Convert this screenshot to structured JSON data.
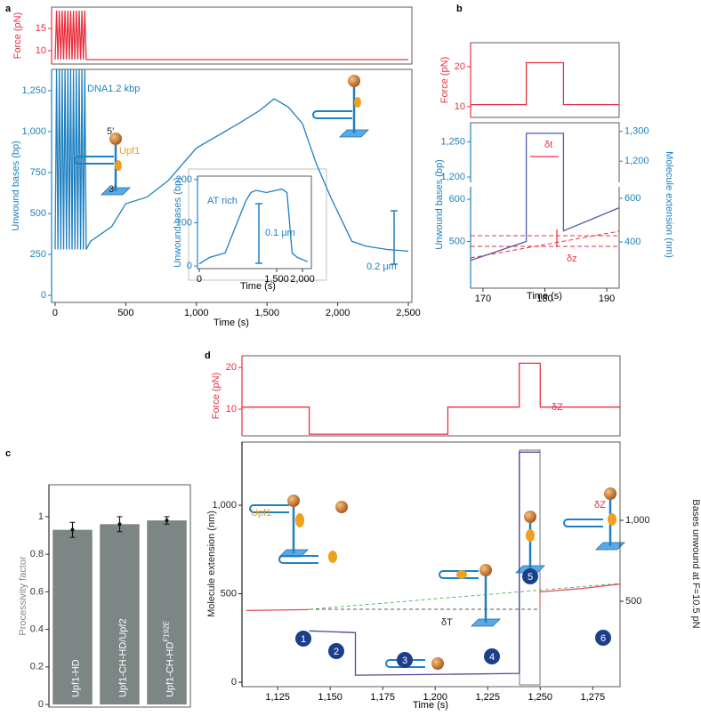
{
  "chart_data": [
    {
      "type": "line",
      "panel": "a",
      "ylabel": "Force (pN)",
      "axis_color": "#e8303f",
      "xlim": [
        -25,
        2525
      ],
      "ylim": [
        7,
        19.8
      ],
      "yticks": [
        10,
        15
      ],
      "x": [
        0,
        10,
        20,
        30,
        40,
        50,
        60,
        70,
        80,
        90,
        100,
        110,
        120,
        130,
        140,
        150,
        160,
        170,
        180,
        190,
        200,
        210,
        220,
        230,
        2500
      ],
      "series": [
        {
          "color": "#e8303f",
          "values": [
            8,
            19,
            8,
            19,
            8,
            19,
            8,
            19,
            8,
            19,
            8,
            19,
            8,
            19,
            8,
            19,
            8,
            19,
            8,
            19,
            8,
            19,
            8,
            8,
            8
          ]
        }
      ]
    },
    {
      "type": "line",
      "ylabel": "Unwound bases (bp)",
      "xlabel": "Time (s)",
      "axis_color": "#1f80c0",
      "xlim": [
        -25,
        2525
      ],
      "ylim": [
        -43,
        1380
      ],
      "yticks": [
        0,
        250,
        500,
        750,
        {
          "value": 1000,
          "label": "1,000"
        },
        {
          "value": 1250,
          "label": "1,250"
        }
      ],
      "xticks": [
        0,
        500,
        {
          "value": 1000,
          "label": "1,000"
        },
        {
          "value": 1500,
          "label": "1,500"
        },
        {
          "value": 2000,
          "label": "2,000"
        },
        {
          "value": 2500,
          "label": "2,500"
        }
      ],
      "annotations": [
        "DNA1.2 kbp",
        "5′",
        "Upf1",
        "3′",
        "0.2 μm"
      ],
      "x": [
        0,
        10,
        20,
        30,
        40,
        50,
        60,
        70,
        80,
        90,
        100,
        110,
        120,
        130,
        140,
        150,
        160,
        170,
        180,
        190,
        200,
        210,
        220,
        250,
        400,
        500,
        650,
        800,
        1000,
        1100,
        1200,
        1300,
        1450,
        1550,
        1650,
        1750,
        1850,
        1950,
        2050,
        2100,
        2200,
        2350,
        2500
      ],
      "series": [
        {
          "color": "#1f80c0",
          "values": [
            280,
            1380,
            280,
            1380,
            280,
            1380,
            280,
            1380,
            280,
            1380,
            280,
            1380,
            280,
            1380,
            280,
            1380,
            280,
            1380,
            280,
            1380,
            280,
            1380,
            280,
            330,
            420,
            560,
            600,
            700,
            900,
            950,
            1000,
            1050,
            1130,
            1200,
            1150,
            1050,
            800,
            600,
            420,
            330,
            300,
            280,
            270
          ]
        }
      ]
    },
    {
      "type": "line",
      "ylabel": "Unwound bases (bp)",
      "xlabel": "Time (s)",
      "axis_color": "#1f80c0",
      "xlim": [
        -34,
        2172
      ],
      "ylim": [
        -6,
        208
      ],
      "yticks": [
        0,
        100,
        200
      ],
      "xticks": [
        0,
        {
          "value": 1500,
          "label": "1,500"
        },
        {
          "value": 2000,
          "label": "2,000"
        }
      ],
      "annotations": [
        "AT rich",
        "0.1 μm"
      ],
      "x": [
        0,
        200,
        500,
        700,
        900,
        1000,
        1100,
        1300,
        1600,
        1700,
        1800,
        1900,
        2100
      ],
      "series": [
        {
          "color": "#1f80c0",
          "values": [
            5,
            20,
            30,
            90,
            150,
            170,
            175,
            170,
            178,
            170,
            30,
            20,
            10
          ]
        }
      ]
    },
    {
      "type": "line",
      "panel": "b",
      "ylabel": "Force (pN)",
      "axis_color": "#e8303f",
      "xlim": [
        168,
        192
      ],
      "ylim": [
        7.3,
        26
      ],
      "yticks": [
        10,
        20
      ],
      "x": [
        168,
        177,
        177,
        183,
        183,
        192
      ],
      "series": [
        {
          "color": "#e8303f",
          "values": [
            10.5,
            10.5,
            21,
            21,
            10.5,
            10.5
          ]
        }
      ]
    },
    {
      "type": "line",
      "ylabel": "Unwound bases (bp)",
      "y2label": "Molecule extension (nm)",
      "xlabel": "Time (s)",
      "axis_color": "#1f80c0",
      "xlim": [
        168,
        192
      ],
      "ylim": [
        389,
        1277
      ],
      "ybreak": [
        632,
        1190
      ],
      "y2lim": [
        188,
        1329
      ],
      "y2break": [
        657,
        1123
      ],
      "yticks": [
        500,
        600,
        {
          "value": 1200,
          "label": "1,200"
        },
        {
          "value": 1250,
          "label": "1,250"
        }
      ],
      "y2ticks": [
        400,
        600,
        {
          "value": 1200,
          "label": "1,200"
        },
        {
          "value": 1300,
          "label": "1,300"
        }
      ],
      "xticks": [
        170,
        180,
        190
      ],
      "annotations": [
        "δt",
        "δz"
      ],
      "x": [
        168,
        177,
        177,
        183,
        183,
        192
      ],
      "series": [
        {
          "color": "#4f5ea6",
          "values": [
            455,
            500,
            1262,
            1262,
            525,
            580
          ]
        }
      ]
    },
    {
      "type": "bar",
      "panel": "c",
      "ylabel": "Processivity factor",
      "color": "#7d8585",
      "ylim": [
        -0.014,
        1.17
      ],
      "yticks": [
        0,
        0.2,
        0.4,
        0.6,
        0.8,
        1
      ],
      "categories": [
        "Upf1-HD",
        "Upf1-CH-HD/Upf2",
        "Upf1-CH-HD"
      ],
      "superscripts": [
        null,
        null,
        "F192E"
      ],
      "values": [
        0.93,
        0.96,
        0.98
      ],
      "errors": [
        0.04,
        0.04,
        0.02
      ]
    },
    {
      "type": "line",
      "panel": "d",
      "ylabel": "Force (pN)",
      "axis_color": "#e8303f",
      "xlim": [
        1108,
        1288
      ],
      "ylim": [
        3.6,
        22.8
      ],
      "yticks": [
        10,
        20
      ],
      "x": [
        1108,
        1140,
        1140,
        1206,
        1206,
        1240,
        1240,
        1250,
        1250,
        1288
      ],
      "series": [
        {
          "color": "#e8303f",
          "values": [
            10.5,
            10.5,
            4,
            4,
            10.5,
            10.5,
            21,
            21,
            10.5,
            10.5
          ]
        }
      ]
    },
    {
      "type": "line",
      "ylabel": "Molecule extension (nm)",
      "y2label": "Bases unwound at F=10.5 pN",
      "xlabel": "Time (s)",
      "axis_color": "#222222",
      "xlim": [
        1108,
        1288
      ],
      "ylim": [
        -25,
        1357
      ],
      "y2lim": [
        -27,
        1483
      ],
      "yticks": [
        0,
        500,
        {
          "value": 1000,
          "label": "1,000"
        }
      ],
      "y2ticks": [
        500,
        {
          "value": 1000,
          "label": "1,000"
        }
      ],
      "xticks": [
        {
          "value": 1125,
          "label": "1,125"
        },
        {
          "value": 1150,
          "label": "1,150"
        },
        {
          "value": 1175,
          "label": "1,175"
        },
        {
          "value": 1200,
          "label": "1,200"
        },
        {
          "value": 1225,
          "label": "1,225"
        },
        {
          "value": 1250,
          "label": "1,250"
        },
        {
          "value": 1275,
          "label": "1,275"
        }
      ],
      "annotations": [
        "Upf1",
        "δT",
        "δZ",
        "δZ"
      ],
      "steps": [
        "1",
        "2",
        "3",
        "4",
        "5",
        "6"
      ],
      "x": [
        1110,
        1140,
        1140,
        1162,
        1162,
        1206,
        1240,
        1240,
        1250,
        1250,
        1270,
        1288
      ],
      "series": [
        {
          "color": "#e04a58",
          "values": [
            405,
            410,
            null,
            null,
            null,
            null,
            null,
            null,
            null,
            510,
            530,
            555
          ]
        },
        {
          "color": "#4a4a9a",
          "values": [
            null,
            null,
            290,
            280,
            40,
            45,
            50,
            1300,
            1300,
            null,
            null,
            null
          ]
        }
      ]
    }
  ]
}
